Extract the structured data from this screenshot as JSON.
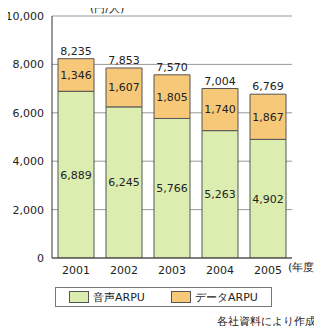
{
  "chart_data": {
    "type": "bar",
    "stacked": true,
    "data_labels": true,
    "grid": true,
    "legend": "bottom",
    "y_label": "(円/人)",
    "x_label": "(年度)",
    "note": "各社資料により作成",
    "categories": [
      "2001",
      "2002",
      "2003",
      "2004",
      "2005"
    ],
    "series": [
      {
        "name": "音声ARPU",
        "color": "#dcedb0",
        "values": [
          6889,
          6245,
          5766,
          5263,
          4902
        ],
        "value_labels": [
          "6,889",
          "6,245",
          "5,766",
          "5,263",
          "4,902"
        ]
      },
      {
        "name": "データARPU",
        "color": "#f7c878",
        "values": [
          1346,
          1607,
          1805,
          1740,
          1867
        ],
        "value_labels": [
          "1,346",
          "1,607",
          "1,805",
          "1,740",
          "1,867"
        ]
      }
    ],
    "totals": [
      8235,
      7853,
      7570,
      7004,
      6769
    ],
    "total_labels": [
      "8,235",
      "7,853",
      "7,570",
      "7,004",
      "6,769"
    ],
    "ylim": [
      0,
      10000
    ],
    "yticks": [
      0,
      {
        "value": 2000,
        "label": "2,000"
      },
      {
        "value": 4000,
        "label": "4,000"
      },
      {
        "value": 6000,
        "label": "6,000"
      },
      {
        "value": 8000,
        "label": "8,000"
      },
      {
        "value": 10000,
        "label": "10,000"
      }
    ]
  }
}
